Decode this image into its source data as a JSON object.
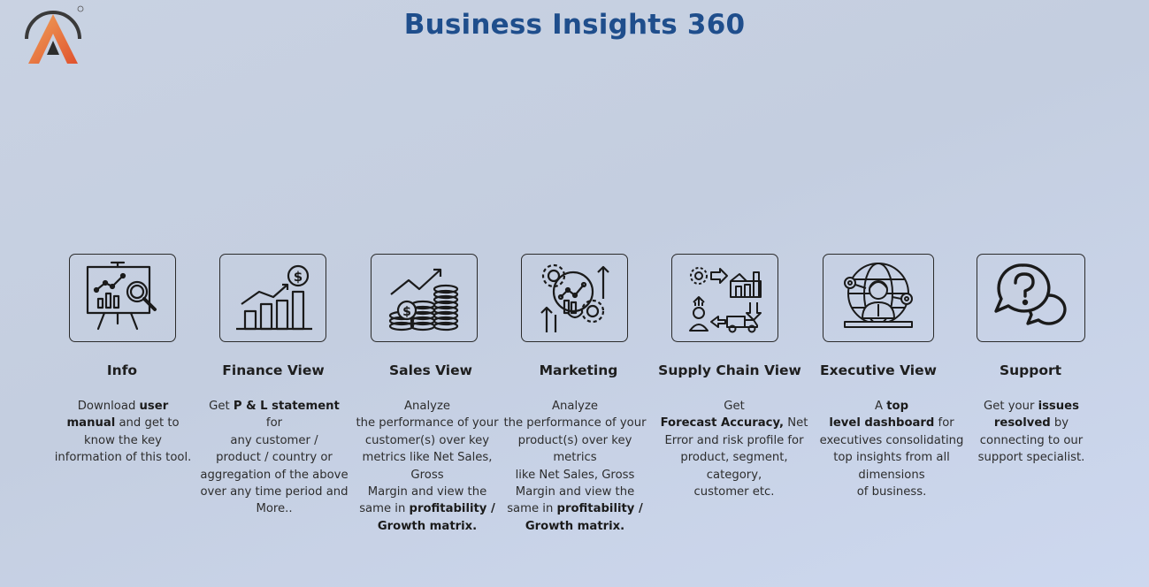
{
  "app": {
    "title": "Business Insights 360"
  },
  "cards": [
    {
      "label": "Info",
      "icon": "presentation-analysis-icon",
      "desc": [
        {
          "t": "Download ",
          "b": false
        },
        {
          "t": "user",
          "b": true
        },
        {
          "br": true
        },
        {
          "t": "manual",
          "b": true
        },
        {
          "t": " and get to",
          "b": false
        },
        {
          "br": true
        },
        {
          "t": "know the key",
          "b": false
        },
        {
          "br": true
        },
        {
          "t": "information of this tool.",
          "b": false
        }
      ]
    },
    {
      "label": "Finance View",
      "icon": "finance-growth-icon",
      "desc": [
        {
          "t": "Get  ",
          "b": false
        },
        {
          "t": "P & L statement",
          "b": true
        },
        {
          "t": " for",
          "b": false
        },
        {
          "br": true
        },
        {
          "t": "any customer /",
          "b": false
        },
        {
          "br": true
        },
        {
          "t": "product / country or",
          "b": false
        },
        {
          "br": true
        },
        {
          "t": "aggregation of the above",
          "b": false
        },
        {
          "br": true
        },
        {
          "t": "over any time period and",
          "b": false
        },
        {
          "br": true
        },
        {
          "t": "More..",
          "b": false
        }
      ]
    },
    {
      "label": "Sales View",
      "icon": "coins-growth-icon",
      "desc": [
        {
          "t": "Analyze",
          "b": false
        },
        {
          "br": true
        },
        {
          "t": "the performance of your",
          "b": false
        },
        {
          "br": true
        },
        {
          "t": "customer(s) over key",
          "b": false
        },
        {
          "br": true
        },
        {
          "t": "metrics like Net Sales,",
          "b": false
        },
        {
          "br": true
        },
        {
          "t": "Gross",
          "b": false
        },
        {
          "br": true
        },
        {
          "t": "Margin and view the",
          "b": false
        },
        {
          "br": true
        },
        {
          "t": "same in ",
          "b": false
        },
        {
          "t": "profitability /",
          "b": true
        },
        {
          "br": true
        },
        {
          "t": "Growth matrix.",
          "b": true
        }
      ]
    },
    {
      "label": "Marketing",
      "icon": "marketing-gears-icon",
      "desc": [
        {
          "t": "Analyze",
          "b": false
        },
        {
          "br": true
        },
        {
          "t": "the performance of your",
          "b": false
        },
        {
          "br": true
        },
        {
          "t": "product(s) over key metrics",
          "b": false
        },
        {
          "br": true
        },
        {
          "t": "like Net Sales, Gross",
          "b": false
        },
        {
          "br": true
        },
        {
          "t": "Margin and view the",
          "b": false
        },
        {
          "br": true
        },
        {
          "t": "same in ",
          "b": false
        },
        {
          "t": "profitability /",
          "b": true
        },
        {
          "br": true
        },
        {
          "t": "Growth matrix.",
          "b": true
        }
      ]
    },
    {
      "label": "Supply Chain View",
      "icon": "supply-chain-icon",
      "desc": [
        {
          "t": "Get",
          "b": false
        },
        {
          "br": true
        },
        {
          "t": "Forecast Accuracy,",
          "b": true
        },
        {
          "t": " Net",
          "b": false
        },
        {
          "br": true
        },
        {
          "t": "Error and risk profile for",
          "b": false
        },
        {
          "br": true
        },
        {
          "t": "product, segment,",
          "b": false
        },
        {
          "br": true
        },
        {
          "t": "category,",
          "b": false
        },
        {
          "br": true
        },
        {
          "t": "customer etc.",
          "b": false
        }
      ]
    },
    {
      "label": "Executive View",
      "icon": "executive-globe-icon",
      "desc": [
        {
          "t": "A ",
          "b": false
        },
        {
          "t": "top",
          "b": true
        },
        {
          "br": true
        },
        {
          "t": "level dashboard",
          "b": true
        },
        {
          "t": " for",
          "b": false
        },
        {
          "br": true
        },
        {
          "t": "executives consolidating",
          "b": false
        },
        {
          "br": true
        },
        {
          "t": "top insights from all",
          "b": false
        },
        {
          "br": true
        },
        {
          "t": "dimensions",
          "b": false
        },
        {
          "br": true
        },
        {
          "t": "of business.",
          "b": false
        }
      ]
    },
    {
      "label": "Support",
      "icon": "support-chat-icon",
      "desc": [
        {
          "t": "Get your ",
          "b": false
        },
        {
          "t": "issues",
          "b": true
        },
        {
          "br": true
        },
        {
          "t": "resolved",
          "b": true
        },
        {
          "t": " by",
          "b": false
        },
        {
          "br": true
        },
        {
          "t": "connecting to our",
          "b": false
        },
        {
          "br": true
        },
        {
          "t": "support specialist.",
          "b": false
        }
      ]
    }
  ]
}
